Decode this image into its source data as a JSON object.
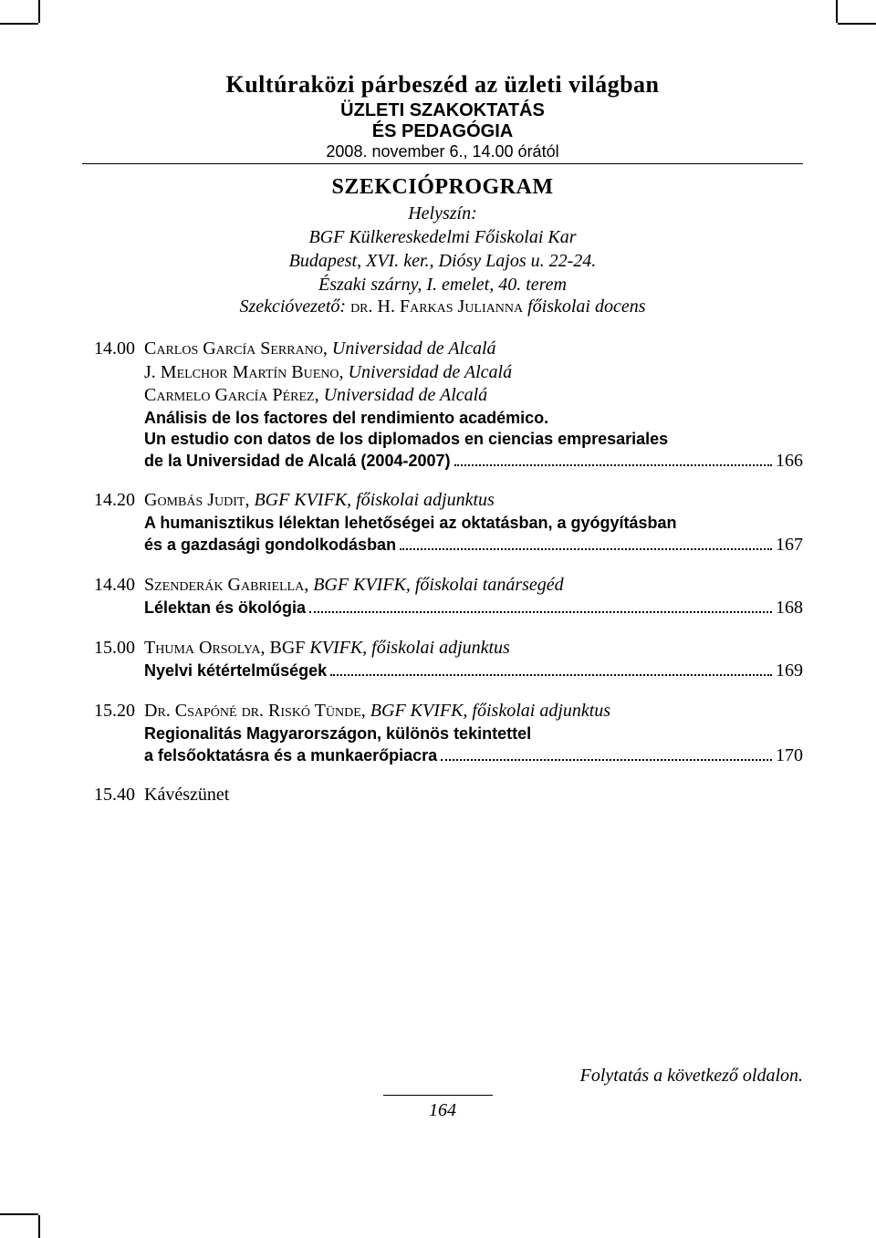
{
  "header": {
    "title": "Kultúraközi párbeszéd az üzleti világban",
    "sub1": "ÜZLETI SZAKOKTATÁS",
    "sub2": "ÉS PEDAGÓGIA",
    "date": "2008. november 6., 14.00 órától"
  },
  "section": {
    "title": "SZEKCIÓPROGRAM",
    "venue_label": "Helyszín:",
    "venue_line1": "BGF Külkereskedelmi Főiskolai Kar",
    "venue_line2": "Budapest, XVI. ker., Diósy Lajos u. 22-24.",
    "venue_line3": "Északi szárny, I. emelet, 40. terem",
    "chair_prefix": "Szekcióvezető: ",
    "chair_name_sc": "dr. H. Farkas Julianna",
    "chair_role": " főiskolai docens"
  },
  "entries": [
    {
      "time": "14.00",
      "authors": [
        {
          "name_sc": "Carlos García Serrano",
          "sep": ", ",
          "aff_ital": "Universidad de Alcalá"
        },
        {
          "name_sc": "J. Melchor Martín Bueno",
          "sep": ", ",
          "aff_ital": "Universidad de Alcalá"
        },
        {
          "name_sc": "Carmelo García Pérez",
          "sep": ", ",
          "aff_ital": "Universidad de Alcalá"
        }
      ],
      "title_lines": [
        "Análisis de los factores del rendimiento académico.",
        "Un estudio con datos de los diplomados en ciencias empresariales"
      ],
      "leader_text": "de la Universidad de Alcalá (2004-2007)",
      "page": "166"
    },
    {
      "time": "14.20",
      "authors": [
        {
          "name_sc": "Gombás Judit",
          "sep": ", ",
          "aff_ital": "BGF KVIFK, főiskolai adjunktus"
        }
      ],
      "title_lines": [
        "A humanisztikus lélektan lehetőségei az oktatásban, a gyógyításban"
      ],
      "leader_text": "és a gazdasági gondolkodásban",
      "page": "167"
    },
    {
      "time": "14.40",
      "authors": [
        {
          "name_sc": "Szenderák Gabriella",
          "sep": ", ",
          "aff_ital": "BGF KVIFK, főiskolai tanársegéd"
        }
      ],
      "title_lines": [],
      "leader_text": "Lélektan és ökológia",
      "page": "168"
    },
    {
      "time": "15.00",
      "authors": [
        {
          "name_sc": "Thuma Orsolya",
          "sep": ", BGF ",
          "aff_ital": "KVIFK, főiskolai adjunktus"
        }
      ],
      "title_lines": [],
      "leader_text": "Nyelvi kétértelműségek",
      "page": "169"
    },
    {
      "time": "15.20",
      "authors": [
        {
          "name_sc": "Dr. Csapóné dr. Riskó Tünde",
          "sep": ", ",
          "aff_ital": "BGF KVIFK, főiskolai adjunktus"
        }
      ],
      "title_lines": [
        "Regionalitás Magyarországon, különös tekintettel"
      ],
      "leader_text": "a felsőoktatásra és a munkaerőpiacra",
      "page": "170"
    },
    {
      "time": "15.40",
      "plain": "Kávészünet"
    }
  ],
  "footer": {
    "note": "Folytatás a következő oldalon.",
    "page_number": "164"
  }
}
